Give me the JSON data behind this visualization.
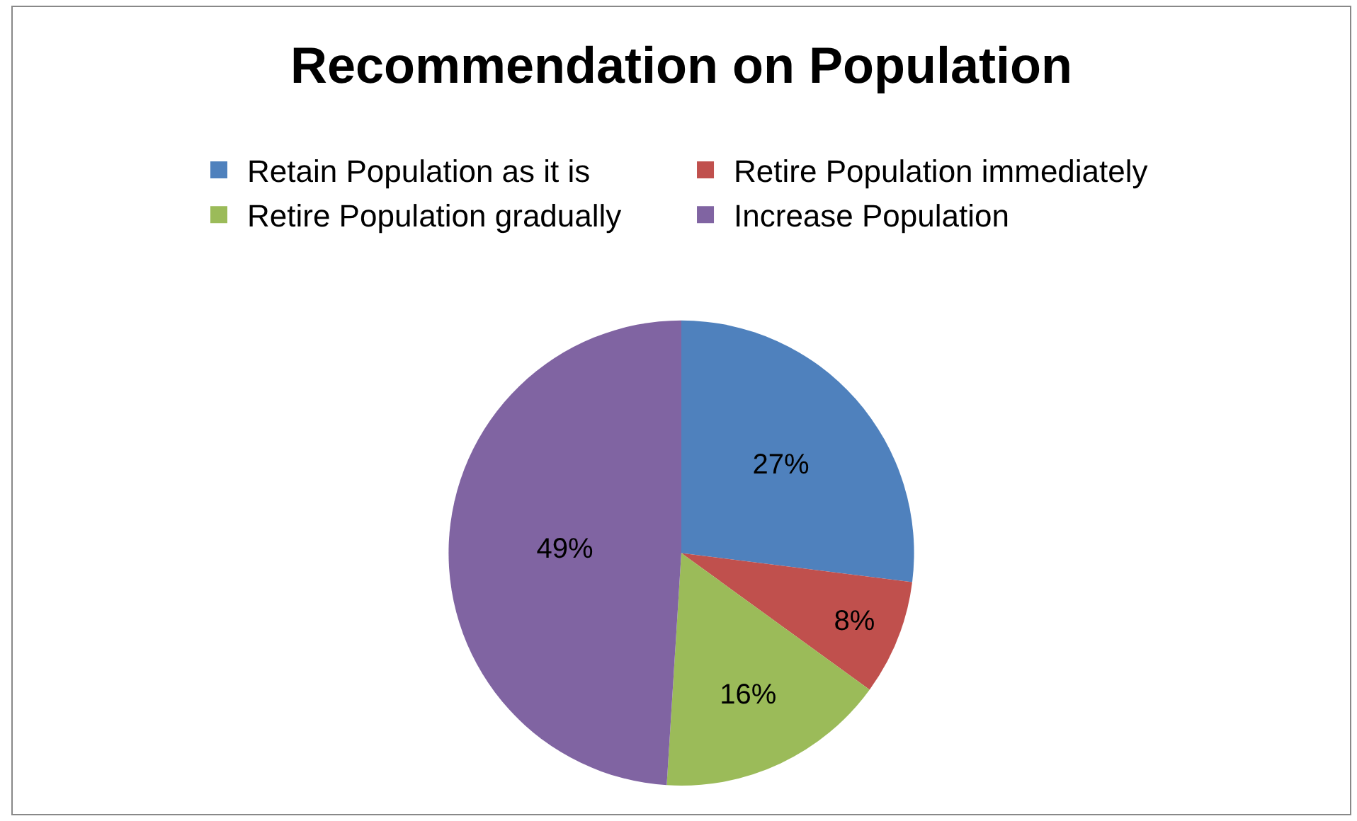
{
  "chart_data": {
    "type": "pie",
    "title": "Recommendation on Population",
    "categories": [
      "Retain Population as it is",
      "Retire Population immediately",
      "Retire Population gradually",
      "Increase Population"
    ],
    "values": [
      27,
      8,
      16,
      49
    ],
    "colors": [
      "#4f81bd",
      "#c0504d",
      "#9bbb59",
      "#8064a2"
    ],
    "value_labels": [
      "27%",
      "8%",
      "16%",
      "49%"
    ],
    "legend": "top"
  }
}
